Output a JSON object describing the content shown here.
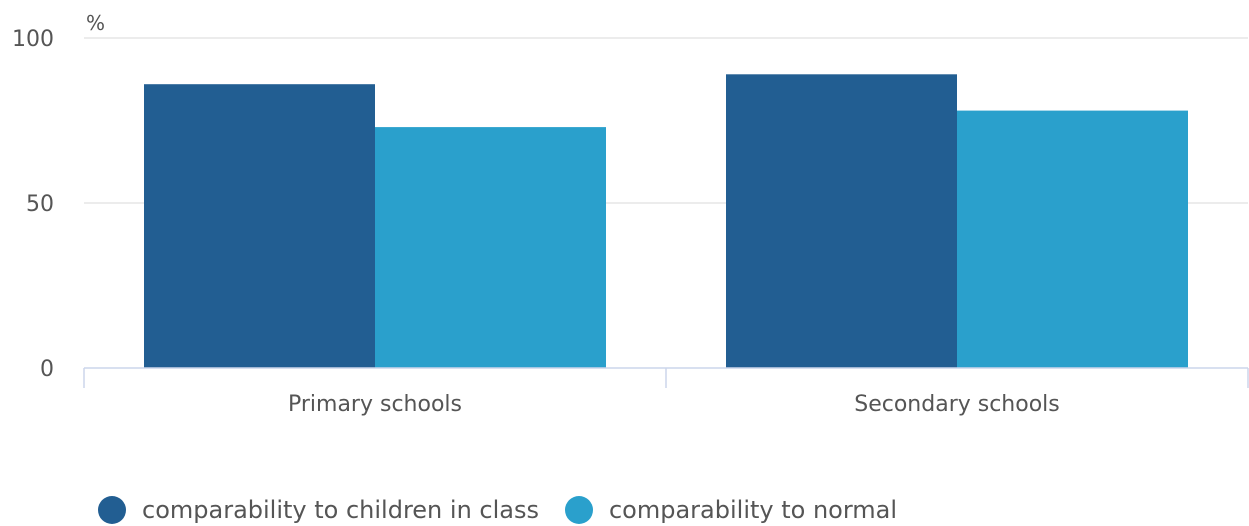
{
  "chart_data": {
    "type": "bar",
    "unit_label": "%",
    "categories": [
      "Primary schools",
      "Secondary schools"
    ],
    "series": [
      {
        "name": "comparability to children in class",
        "color": "#225e92",
        "values": [
          86,
          89
        ]
      },
      {
        "name": "comparability to normal",
        "color": "#2aa0cc",
        "values": [
          73,
          78
        ]
      }
    ],
    "ylim": [
      0,
      100
    ],
    "yticks": [
      0,
      50,
      100
    ],
    "grid": true,
    "legend_position": "bottom-left"
  }
}
